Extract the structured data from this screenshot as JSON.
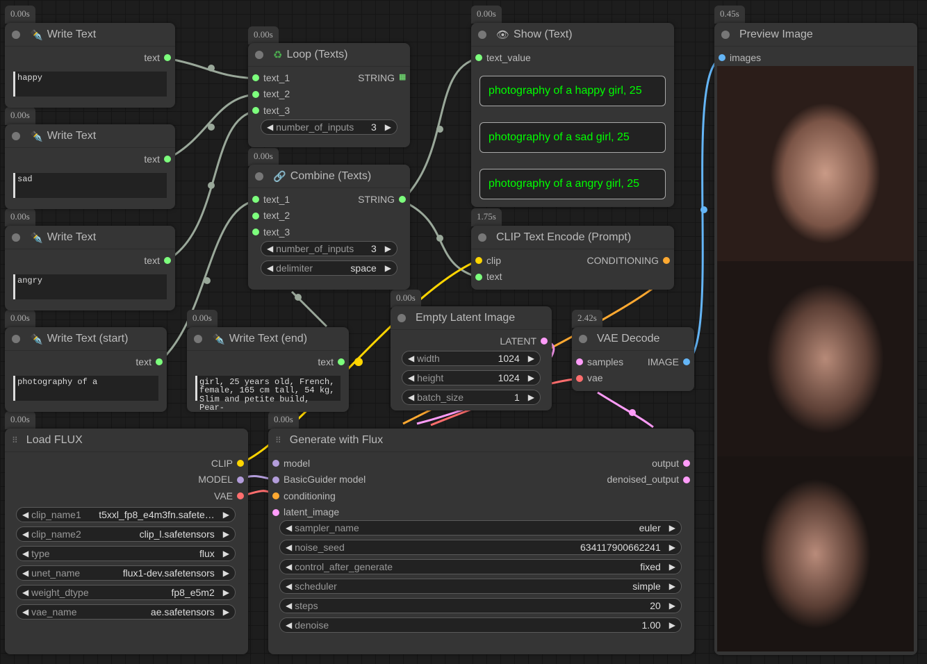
{
  "colors": {
    "string": "#7dff7d",
    "clip": "#ffd500",
    "model": "#b39ddb",
    "vae": "#ff6e6e",
    "latent": "#ff9cf9",
    "image": "#64b5f6",
    "conditioning": "#ffa931",
    "show_text": "#00ff00"
  },
  "badges": {
    "wt1": "0.00s",
    "wt2": "0.00s",
    "wt3": "0.00s",
    "wts": "0.00s",
    "wte": "0.00s",
    "loop": "0.00s",
    "combine": "0.00s",
    "show": "0.00s",
    "clip": "1.75s",
    "latent": "0.00s",
    "vae": "2.42s",
    "preview": "0.45s",
    "flux": "0.00s",
    "gen": "0.00s"
  },
  "write_text_nodes": [
    {
      "title": "Write Text",
      "output": "text",
      "value": "happy"
    },
    {
      "title": "Write Text",
      "output": "text",
      "value": "sad"
    },
    {
      "title": "Write Text",
      "output": "text",
      "value": "angry"
    },
    {
      "title": "Write Text (start)",
      "output": "text",
      "value": "photography of a"
    },
    {
      "title": "Write Text (end)",
      "output": "text",
      "value": "girl, 25 years old, French, female, 165 cm tall, 54 kg, Slim and petite build, Pear-"
    }
  ],
  "loop": {
    "title": "Loop (Texts)",
    "inputs": [
      "text_1",
      "text_2",
      "text_3"
    ],
    "output": "STRING",
    "widget_label": "number_of_inputs",
    "widget_value": "3"
  },
  "combine": {
    "title": "Combine (Texts)",
    "inputs": [
      "text_1",
      "text_2",
      "text_3"
    ],
    "output": "STRING",
    "widgets": [
      {
        "label": "number_of_inputs",
        "value": "3"
      },
      {
        "label": "delimiter",
        "value": "space"
      }
    ]
  },
  "show": {
    "title": "Show (Text)",
    "input": "text_value",
    "texts": [
      "photography of a happy girl, 25",
      "photography of a sad girl, 25",
      "photography of a angry girl, 25"
    ]
  },
  "clip": {
    "title": "CLIP Text Encode (Prompt)",
    "inputs": [
      "clip",
      "text"
    ],
    "output": "CONDITIONING"
  },
  "latent": {
    "title": "Empty Latent Image",
    "output": "LATENT",
    "widgets": [
      {
        "label": "width",
        "value": "1024"
      },
      {
        "label": "height",
        "value": "1024"
      },
      {
        "label": "batch_size",
        "value": "1"
      }
    ]
  },
  "vae": {
    "title": "VAE Decode",
    "inputs": [
      "samples",
      "vae"
    ],
    "output": "IMAGE"
  },
  "preview": {
    "title": "Preview Image",
    "input": "images"
  },
  "flux": {
    "title": "Load FLUX",
    "outputs": [
      "CLIP",
      "MODEL",
      "VAE"
    ],
    "widgets": [
      {
        "label": "clip_name1",
        "value": "t5xxl_fp8_e4m3fn.safete…"
      },
      {
        "label": "clip_name2",
        "value": "clip_l.safetensors"
      },
      {
        "label": "type",
        "value": "flux"
      },
      {
        "label": "unet_name",
        "value": "flux1-dev.safetensors"
      },
      {
        "label": "weight_dtype",
        "value": "fp8_e5m2"
      },
      {
        "label": "vae_name",
        "value": "ae.safetensors"
      }
    ]
  },
  "gen": {
    "title": "Generate with Flux",
    "inputs": [
      "model",
      "BasicGuider model",
      "conditioning",
      "latent_image"
    ],
    "outputs": [
      "output",
      "denoised_output"
    ],
    "widgets": [
      {
        "label": "sampler_name",
        "value": "euler"
      },
      {
        "label": "noise_seed",
        "value": "634117900662241"
      },
      {
        "label": "control_after_generate",
        "value": "fixed"
      },
      {
        "label": "scheduler",
        "value": "simple"
      },
      {
        "label": "steps",
        "value": "20"
      },
      {
        "label": "denoise",
        "value": "1.00"
      }
    ]
  }
}
